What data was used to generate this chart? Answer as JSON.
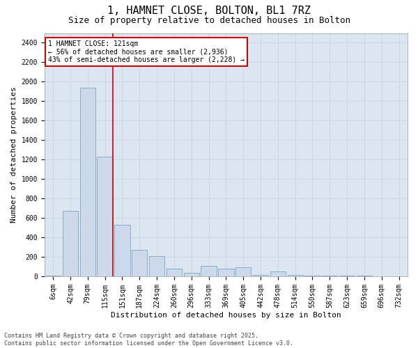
{
  "title1": "1, HAMNET CLOSE, BOLTON, BL1 7RZ",
  "title2": "Size of property relative to detached houses in Bolton",
  "xlabel": "Distribution of detached houses by size in Bolton",
  "ylabel": "Number of detached properties",
  "categories": [
    "6sqm",
    "42sqm",
    "79sqm",
    "115sqm",
    "151sqm",
    "187sqm",
    "224sqm",
    "260sqm",
    "296sqm",
    "333sqm",
    "369sqm",
    "405sqm",
    "442sqm",
    "478sqm",
    "514sqm",
    "550sqm",
    "587sqm",
    "623sqm",
    "659sqm",
    "696sqm",
    "732sqm"
  ],
  "values": [
    10,
    670,
    1940,
    1230,
    530,
    270,
    205,
    75,
    35,
    110,
    80,
    90,
    12,
    50,
    12,
    10,
    5,
    10,
    5,
    0,
    0
  ],
  "bar_color": "#ccd9ea",
  "bar_edge_color": "#7096be",
  "grid_color": "#c8d4e3",
  "background_color": "#dce6f0",
  "red_line_index": 3,
  "annotation_text": "1 HAMNET CLOSE: 121sqm\n← 56% of detached houses are smaller (2,936)\n43% of semi-detached houses are larger (2,228) →",
  "annotation_box_color": "#ffffff",
  "annotation_box_edge": "#cc0000",
  "vline_color": "#cc0000",
  "ylim": [
    0,
    2500
  ],
  "yticks": [
    0,
    200,
    400,
    600,
    800,
    1000,
    1200,
    1400,
    1600,
    1800,
    2000,
    2200,
    2400
  ],
  "footnote": "Contains HM Land Registry data © Crown copyright and database right 2025.\nContains public sector information licensed under the Open Government Licence v3.0.",
  "title1_fontsize": 11,
  "title2_fontsize": 9,
  "xlabel_fontsize": 8,
  "ylabel_fontsize": 8,
  "tick_fontsize": 7,
  "annot_fontsize": 7,
  "footnote_fontsize": 6
}
